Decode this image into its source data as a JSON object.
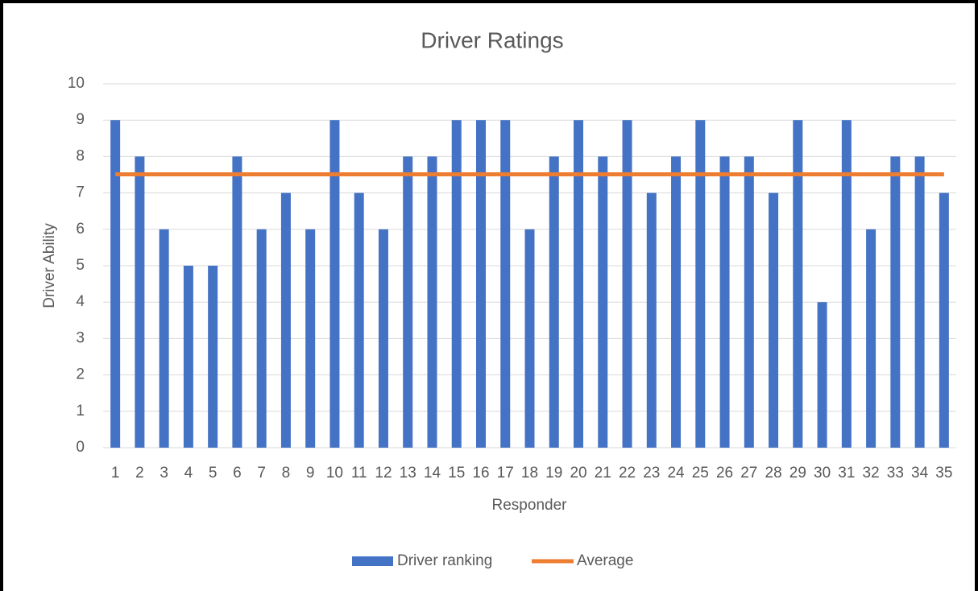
{
  "chart_data": {
    "type": "bar",
    "title": "Driver Ratings",
    "x_label": "Responder",
    "y_label": "Driver Ability",
    "categories": [
      "1",
      "2",
      "3",
      "4",
      "5",
      "6",
      "7",
      "8",
      "9",
      "10",
      "11",
      "12",
      "13",
      "14",
      "15",
      "16",
      "17",
      "18",
      "19",
      "20",
      "21",
      "22",
      "23",
      "24",
      "25",
      "26",
      "27",
      "28",
      "29",
      "30",
      "31",
      "32",
      "33",
      "34",
      "35"
    ],
    "series": [
      {
        "name": "Driver ranking",
        "type": "bar",
        "color": "#4472c4",
        "values": [
          9,
          8,
          6,
          5,
          5,
          8,
          6,
          7,
          6,
          9,
          7,
          6,
          8,
          8,
          9,
          9,
          9,
          6,
          8,
          9,
          8,
          9,
          7,
          8,
          9,
          8,
          8,
          7,
          9,
          4,
          9,
          6,
          8,
          8,
          7
        ]
      },
      {
        "name": "Average",
        "type": "line",
        "color": "#ed7d31",
        "values": [
          7.51,
          7.51,
          7.51,
          7.51,
          7.51,
          7.51,
          7.51,
          7.51,
          7.51,
          7.51,
          7.51,
          7.51,
          7.51,
          7.51,
          7.51,
          7.51,
          7.51,
          7.51,
          7.51,
          7.51,
          7.51,
          7.51,
          7.51,
          7.51,
          7.51,
          7.51,
          7.51,
          7.51,
          7.51,
          7.51,
          7.51,
          7.51,
          7.51,
          7.51,
          7.51
        ]
      }
    ],
    "ylim": [
      0,
      10
    ],
    "yticks": [
      0,
      1,
      2,
      3,
      4,
      5,
      6,
      7,
      8,
      9,
      10
    ],
    "grid": true,
    "legend": "bottom"
  }
}
